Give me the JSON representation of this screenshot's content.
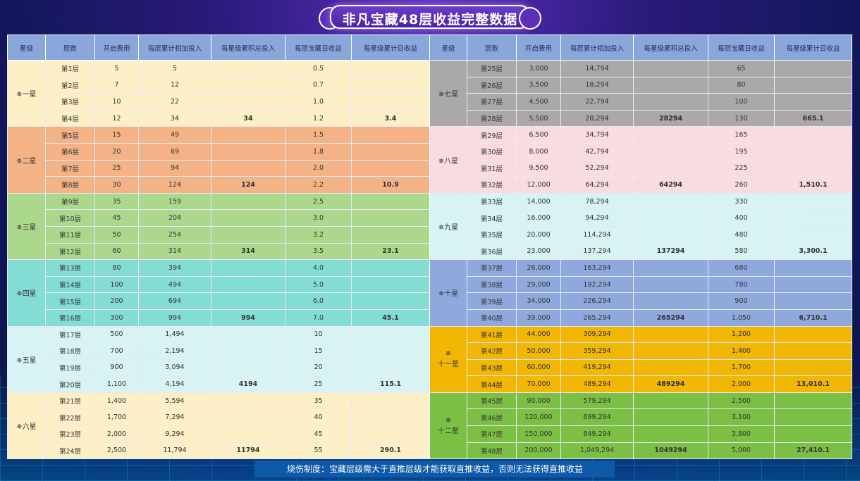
{
  "title": "非凡宝藏48层收益完整数据",
  "headers": [
    "星级",
    "层数",
    "开启费用",
    "每层累计相加投入",
    "每星级累积总投入",
    "每层宝藏日收益",
    "每星级累计日收益"
  ],
  "footer": "烧伤制度：宝藏层级需大于直推层级才能获取直推收益，否则无法获得直推收益",
  "left_groups": [
    {
      "star": "一星",
      "color": "#fdefc6",
      "rows": [
        [
          "第1层",
          "5",
          "5",
          "",
          "0.5",
          ""
        ],
        [
          "第2层",
          "7",
          "12",
          "",
          "0.7",
          ""
        ],
        [
          "第3层",
          "10",
          "22",
          "",
          "1.0",
          ""
        ],
        [
          "第4层",
          "12",
          "34",
          "34",
          "1.2",
          "3.4"
        ]
      ]
    },
    {
      "star": "二星",
      "color": "#f3b387",
      "rows": [
        [
          "第5层",
          "15",
          "49",
          "",
          "1.5",
          ""
        ],
        [
          "第6层",
          "20",
          "69",
          "",
          "1.8",
          ""
        ],
        [
          "第7层",
          "25",
          "94",
          "",
          "2.0",
          ""
        ],
        [
          "第8层",
          "30",
          "124",
          "124",
          "2.2",
          "10.9"
        ]
      ]
    },
    {
      "star": "三星",
      "color": "#acd88e",
      "rows": [
        [
          "第9层",
          "35",
          "159",
          "",
          "2.5",
          ""
        ],
        [
          "第10层",
          "45",
          "204",
          "",
          "3.0",
          ""
        ],
        [
          "第11层",
          "50",
          "254",
          "",
          "3.2",
          ""
        ],
        [
          "第12层",
          "60",
          "314",
          "314",
          "3.5",
          "23.1"
        ]
      ]
    },
    {
      "star": "四星",
      "color": "#83ddd5",
      "rows": [
        [
          "第13层",
          "80",
          "394",
          "",
          "4.0",
          ""
        ],
        [
          "第14层",
          "100",
          "494",
          "",
          "5.0",
          ""
        ],
        [
          "第15层",
          "200",
          "694",
          "",
          "6.0",
          ""
        ],
        [
          "第16层",
          "300",
          "994",
          "994",
          "7.0",
          "45.1"
        ]
      ]
    },
    {
      "star": "五星",
      "color": "#d8f3f3",
      "rows": [
        [
          "第17层",
          "500",
          "1,494",
          "",
          "10",
          ""
        ],
        [
          "第18层",
          "700",
          "2,194",
          "",
          "15",
          ""
        ],
        [
          "第19层",
          "900",
          "3,094",
          "",
          "20",
          ""
        ],
        [
          "第20层",
          "1,100",
          "4,194",
          "4194",
          "25",
          "115.1"
        ]
      ]
    },
    {
      "star": "六星",
      "color": "#fdefc6",
      "rows": [
        [
          "第21层",
          "1,400",
          "5,594",
          "",
          "35",
          ""
        ],
        [
          "第22层",
          "1,700",
          "7,294",
          "",
          "40",
          ""
        ],
        [
          "第23层",
          "2,000",
          "9,294",
          "",
          "45",
          ""
        ],
        [
          "第24层",
          "2,500",
          "11,794",
          "11794",
          "55",
          "290.1"
        ]
      ]
    }
  ],
  "right_groups": [
    {
      "star": "七星",
      "color": "#aaa8a8",
      "rows": [
        [
          "第25层",
          "3,000",
          "14,794",
          "",
          "65",
          ""
        ],
        [
          "第26层",
          "3,500",
          "18,294",
          "",
          "80",
          ""
        ],
        [
          "第27层",
          "4,500",
          "22,794",
          "",
          "100",
          ""
        ],
        [
          "第28层",
          "5,500",
          "28,294",
          "28294",
          "130",
          "665.1"
        ]
      ]
    },
    {
      "star": "八星",
      "color": "#f9dbe0",
      "rows": [
        [
          "第29层",
          "6,500",
          "34,794",
          "",
          "165",
          ""
        ],
        [
          "第30层",
          "8,000",
          "42,794",
          "",
          "195",
          ""
        ],
        [
          "第31层",
          "9,500",
          "52,294",
          "",
          "225",
          ""
        ],
        [
          "第32层",
          "12,000",
          "64,294",
          "64294",
          "260",
          "1,510.1"
        ]
      ]
    },
    {
      "star": "九星",
      "color": "#d8f3f3",
      "rows": [
        [
          "第33层",
          "14,000",
          "78,294",
          "",
          "330",
          ""
        ],
        [
          "第34层",
          "16,000",
          "94,294",
          "",
          "400",
          ""
        ],
        [
          "第35层",
          "20,000",
          "114,294",
          "",
          "480",
          ""
        ],
        [
          "第36层",
          "23,000",
          "137,294",
          "137294",
          "580",
          "3,300.1"
        ]
      ]
    },
    {
      "star": "十星",
      "color": "#8fa9df",
      "rows": [
        [
          "第37层",
          "26,000",
          "163,294",
          "",
          "680",
          ""
        ],
        [
          "第38层",
          "29,000",
          "192,294",
          "",
          "780",
          ""
        ],
        [
          "第39层",
          "34,000",
          "226,294",
          "",
          "900",
          ""
        ],
        [
          "第40层",
          "39,000",
          "265,294",
          "265294",
          "1,050",
          "6,710.1"
        ]
      ]
    },
    {
      "star": "十一星",
      "color": "#f2b705",
      "rows": [
        [
          "第41层",
          "44,000",
          "309,294",
          "",
          "1,200",
          ""
        ],
        [
          "第42层",
          "50,000",
          "359,294",
          "",
          "1,400",
          ""
        ],
        [
          "第43层",
          "60,000",
          "419,294",
          "",
          "1,700",
          ""
        ],
        [
          "第44层",
          "70,000",
          "489,294",
          "489294",
          "2,000",
          "13,010.1"
        ]
      ]
    },
    {
      "star": "十二星",
      "color": "#7cbf45",
      "rows": [
        [
          "第45层",
          "90,000",
          "579,294",
          "",
          "2,500",
          ""
        ],
        [
          "第46层",
          "120,000",
          "699,294",
          "",
          "3,100",
          ""
        ],
        [
          "第47层",
          "150,000",
          "849,294",
          "",
          "3,800",
          ""
        ],
        [
          "第48层",
          "200,000",
          "1,049,294",
          "1049294",
          "5,000",
          "27,410.1"
        ]
      ]
    }
  ]
}
